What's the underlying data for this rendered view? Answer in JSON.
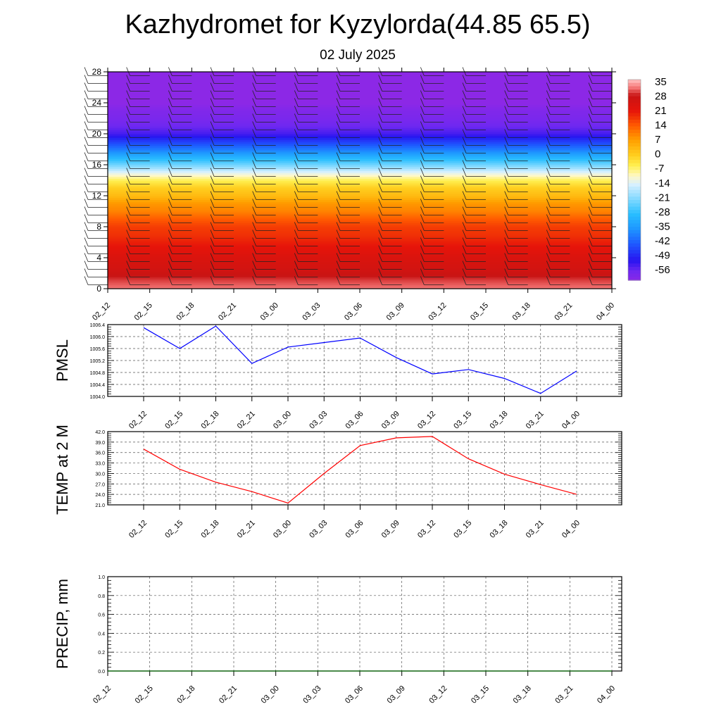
{
  "header": {
    "title": "Kazhydromet for Kyzylorda(44.85 65.5)",
    "date": "02 July 2025"
  },
  "time_labels": [
    "02_12",
    "02_15",
    "02_18",
    "02_21",
    "03_00",
    "03_03",
    "03_06",
    "03_09",
    "03_12",
    "03_15",
    "03_18",
    "03_21",
    "04_00"
  ],
  "chart_data": [
    {
      "type": "heatmap",
      "name": "cross-section",
      "x": [
        "02_12",
        "02_15",
        "02_18",
        "02_21",
        "03_00",
        "03_03",
        "03_06",
        "03_09",
        "03_12",
        "03_15",
        "03_18",
        "03_21",
        "04_00"
      ],
      "ylim": [
        0,
        28
      ],
      "yticks": [
        0,
        4,
        8,
        12,
        16,
        20,
        24,
        28
      ],
      "colorbar_labels": [
        "35",
        "28",
        "21",
        "14",
        "7",
        "0",
        "-7",
        "-14",
        "-21",
        "-28",
        "-35",
        "-42",
        "-49",
        "-56"
      ],
      "levels": [
        0,
        1,
        2,
        3,
        4,
        5,
        6,
        7,
        8,
        9,
        10,
        11,
        12,
        13,
        14,
        15,
        16,
        17,
        18,
        19,
        20,
        21,
        22,
        23,
        24,
        25,
        26,
        27,
        28
      ],
      "temperature_at_levels": [
        32,
        30,
        27,
        25,
        24,
        22,
        20,
        18,
        17,
        14,
        10,
        8,
        3,
        0,
        -5,
        -13,
        -22,
        -30,
        -38,
        -45,
        -52,
        -55,
        -57,
        -58,
        -60,
        -60,
        -60,
        -60,
        -60
      ],
      "wind_barbs": "black barbs at every time column, every level"
    },
    {
      "type": "line",
      "name": "pmsl",
      "ylabel": "PMSL",
      "x": [
        "02_12",
        "02_15",
        "02_18",
        "02_21",
        "03_00",
        "03_03",
        "03_06",
        "03_09",
        "03_12",
        "03_15",
        "03_18",
        "03_21",
        "04_00"
      ],
      "values": [
        1006.3,
        1005.6,
        1006.35,
        1005.1,
        1005.65,
        1005.8,
        1005.95,
        1005.3,
        1004.75,
        1004.9,
        1004.6,
        1004.1,
        1004.85
      ],
      "ylim": [
        1004.0,
        1006.4
      ],
      "yticks": [
        "1004.0",
        "1004.4",
        "1004.8",
        "1005.2",
        "1005.6",
        "1006.0",
        "1006.4"
      ],
      "color": "#0000ff",
      "grid": true
    },
    {
      "type": "line",
      "name": "temp2m",
      "ylabel": "TEMP at 2 M",
      "x": [
        "02_12",
        "02_15",
        "02_18",
        "02_21",
        "03_00",
        "03_03",
        "03_06",
        "03_09",
        "03_12",
        "03_15",
        "03_18",
        "03_21",
        "04_00"
      ],
      "values": [
        37.0,
        31.2,
        27.5,
        24.8,
        21.5,
        30.0,
        38.0,
        40.2,
        40.6,
        34.2,
        29.8,
        26.8,
        24.0
      ],
      "ylim": [
        21.0,
        42.0
      ],
      "yticks": [
        "21.0",
        "24.0",
        "27.0",
        "30.0",
        "33.0",
        "36.0",
        "39.0",
        "42.0"
      ],
      "color": "#ff0000",
      "grid": true
    },
    {
      "type": "line",
      "name": "precip",
      "ylabel": "PRECIP, mm",
      "x": [
        "02_12",
        "02_15",
        "02_18",
        "02_21",
        "03_00",
        "03_03",
        "03_06",
        "03_09",
        "03_12",
        "03_15",
        "03_18",
        "03_21",
        "04_00"
      ],
      "values": [
        0,
        0,
        0,
        0,
        0,
        0,
        0,
        0,
        0,
        0,
        0,
        0,
        0
      ],
      "ylim": [
        0.0,
        1.0
      ],
      "yticks": [
        "0.0",
        "0.2",
        "0.4",
        "0.6",
        "0.8",
        "1.0"
      ],
      "color": "#006400",
      "grid": true
    }
  ]
}
